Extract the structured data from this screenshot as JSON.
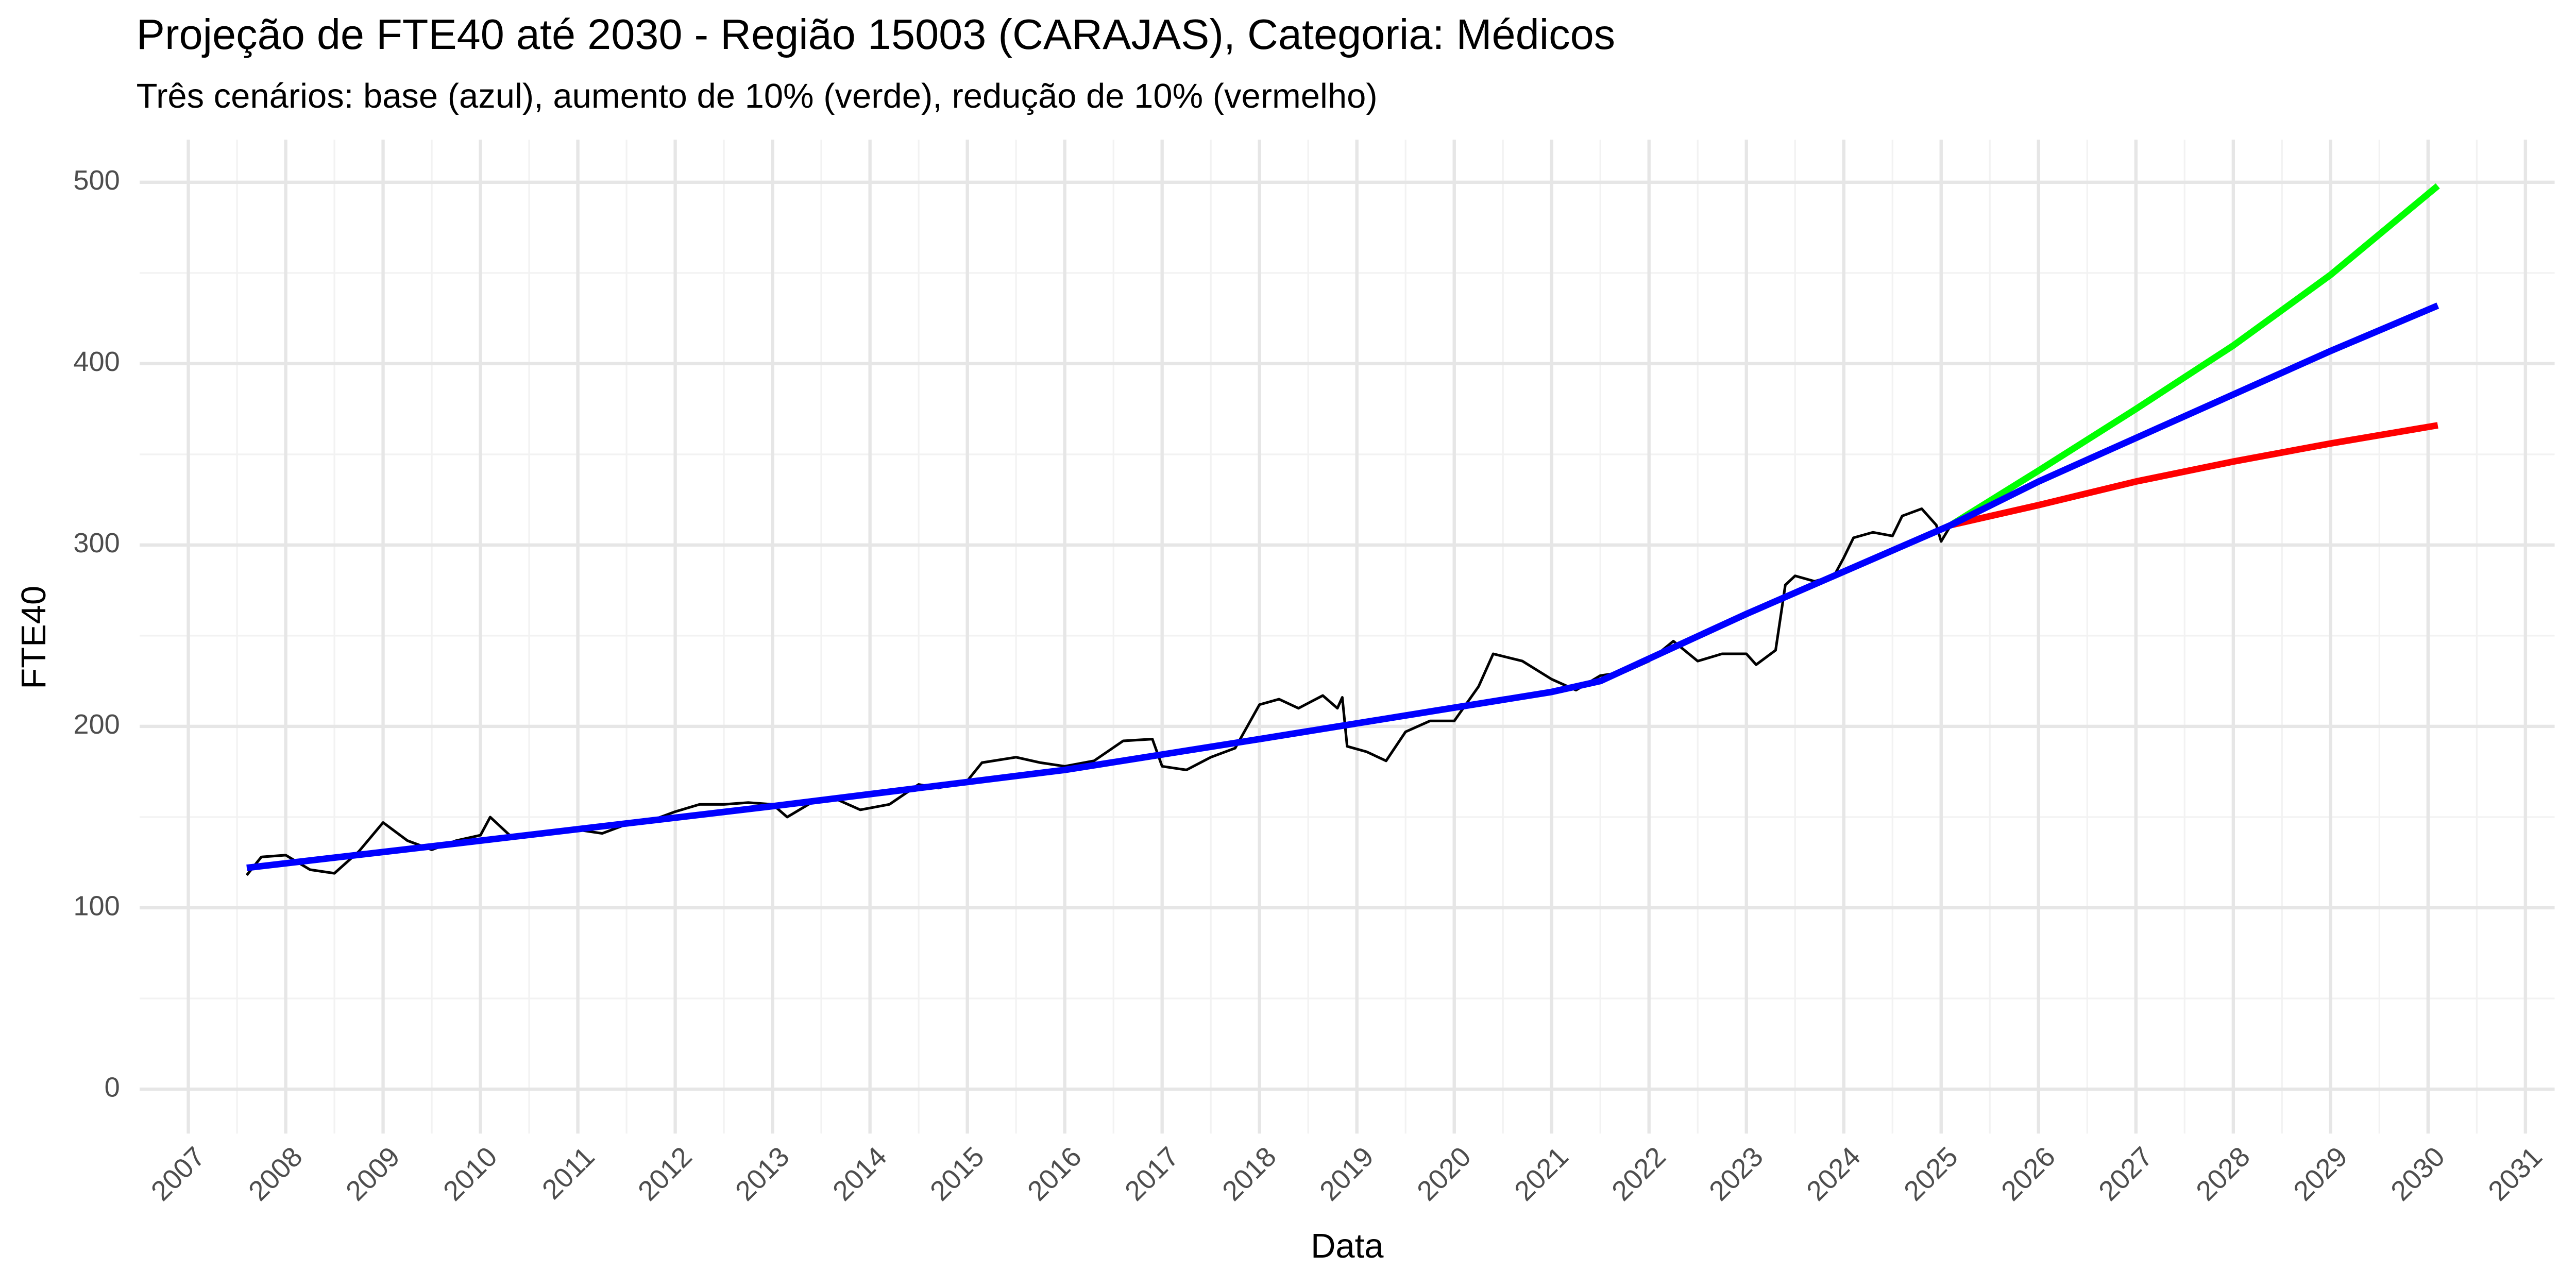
{
  "chart_data": {
    "type": "line",
    "title": "Projeção de FTE40 até 2030 - Região 15003 (CARAJAS), Categoria: Médicos",
    "subtitle": "Três cenários: base (azul), aumento de 10% (verde), redução de 10% (vermelho)",
    "x_label": "Data",
    "y_label": "FTE40",
    "xlim": [
      2006.5,
      2031.3
    ],
    "ylim": [
      -24.5,
      523.5
    ],
    "xticks": [
      2007,
      2008,
      2009,
      2010,
      2011,
      2012,
      2013,
      2014,
      2015,
      2016,
      2017,
      2018,
      2019,
      2020,
      2021,
      2022,
      2023,
      2024,
      2025,
      2026,
      2027,
      2028,
      2029,
      2030,
      2031
    ],
    "yticks": [
      0,
      100,
      200,
      300,
      400,
      500
    ],
    "xminor": [
      2007.5,
      2008.5,
      2009.5,
      2010.5,
      2011.5,
      2012.5,
      2013.5,
      2014.5,
      2015.5,
      2016.5,
      2017.5,
      2018.5,
      2019.5,
      2020.5,
      2021.5,
      2022.5,
      2023.5,
      2024.5,
      2025.5,
      2026.5,
      2027.5,
      2028.5,
      2029.5,
      2030.5
    ],
    "yminor": [
      50,
      150,
      250,
      350,
      450
    ],
    "grid": true,
    "series": [
      {
        "color": "#000000",
        "width": 1.6,
        "x": [
          2007.6,
          2007.75,
          2008.0,
          2008.25,
          2008.5,
          2008.75,
          2009.0,
          2009.25,
          2009.5,
          2009.75,
          2010.0,
          2010.1,
          2010.3,
          2010.5,
          2010.75,
          2011.0,
          2011.25,
          2011.5,
          2011.75,
          2012.0,
          2012.25,
          2012.5,
          2012.75,
          2013.0,
          2013.15,
          2013.4,
          2013.65,
          2013.9,
          2014.2,
          2014.5,
          2014.7,
          2015.0,
          2015.15,
          2015.5,
          2015.75,
          2016.0,
          2016.3,
          2016.6,
          2016.9,
          2017.0,
          2017.25,
          2017.5,
          2017.75,
          2018.0,
          2018.2,
          2018.4,
          2018.65,
          2018.8,
          2018.85,
          2018.9,
          2019.1,
          2019.3,
          2019.5,
          2019.75,
          2020.0,
          2020.25,
          2020.4,
          2020.7,
          2021.0,
          2021.25,
          2021.5,
          2021.75,
          2022.0,
          2022.25,
          2022.5,
          2022.75,
          2023.0,
          2023.1,
          2023.3,
          2023.4,
          2023.5,
          2023.7,
          2023.9,
          2024.0,
          2024.1,
          2024.3,
          2024.5,
          2024.6,
          2024.8,
          2024.95,
          2025.0,
          2025.1
        ],
        "values": [
          118,
          128,
          129,
          121,
          119,
          131,
          147,
          137,
          132,
          137,
          140,
          150,
          140,
          140,
          141,
          143,
          141,
          146,
          148,
          153,
          157,
          157,
          158,
          157,
          150,
          158,
          160,
          154,
          157,
          168,
          166,
          170,
          180,
          183,
          180,
          178,
          181,
          192,
          193,
          178,
          176,
          183,
          188,
          212,
          215,
          210,
          217,
          210,
          216,
          189,
          186,
          181,
          197,
          203,
          203,
          222,
          240,
          236,
          226,
          220,
          228,
          230,
          236,
          247,
          236,
          240,
          240,
          234,
          242,
          278,
          283,
          280,
          283,
          293,
          304,
          307,
          305,
          316,
          320,
          311,
          302,
          311
        ]
      },
      {
        "color": "#00ff00",
        "width": 4,
        "x": [
          2025.1,
          2026,
          2027,
          2028,
          2029,
          2030.1
        ],
        "values": [
          311,
          341,
          375,
          410,
          449,
          498
        ]
      },
      {
        "color": "#ff0000",
        "width": 4,
        "x": [
          2025.1,
          2026,
          2027,
          2028,
          2029,
          2030.1
        ],
        "values": [
          311,
          322,
          335,
          346,
          356,
          366
        ]
      },
      {
        "color": "#0000ff",
        "width": 4,
        "x": [
          2007.6,
          2010,
          2013,
          2016,
          2018,
          2021,
          2021.5,
          2023,
          2025.1,
          2026,
          2027,
          2028,
          2029,
          2030.1
        ],
        "values": [
          122,
          137,
          156,
          176,
          193,
          219,
          225,
          262,
          311,
          335,
          359,
          383,
          407,
          432
        ]
      }
    ]
  }
}
